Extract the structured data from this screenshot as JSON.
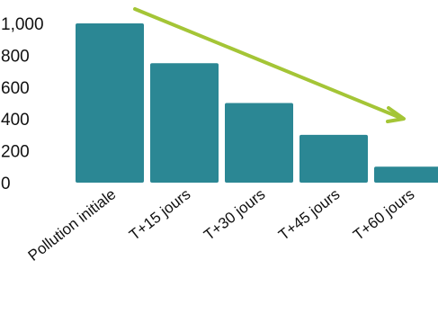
{
  "chart_data": {
    "type": "bar",
    "title": "",
    "xlabel": "",
    "ylabel": "",
    "categories": [
      "Pollution initiale",
      "T+15 jours",
      "T+30 jours",
      "T+45 jours",
      "T+60 jours"
    ],
    "values": [
      1000,
      750,
      500,
      300,
      100
    ],
    "ylim": [
      0,
      1000
    ],
    "yticks": [
      0,
      200,
      400,
      600,
      800,
      1000
    ],
    "ytick_labels": [
      "0",
      "200",
      "400",
      "600",
      "800",
      "1,000"
    ],
    "grid": false,
    "legend": "none",
    "bar_color": "#2b8794",
    "annotation": {
      "type": "trend-arrow",
      "direction": "downward",
      "color": "#a4c536"
    }
  }
}
